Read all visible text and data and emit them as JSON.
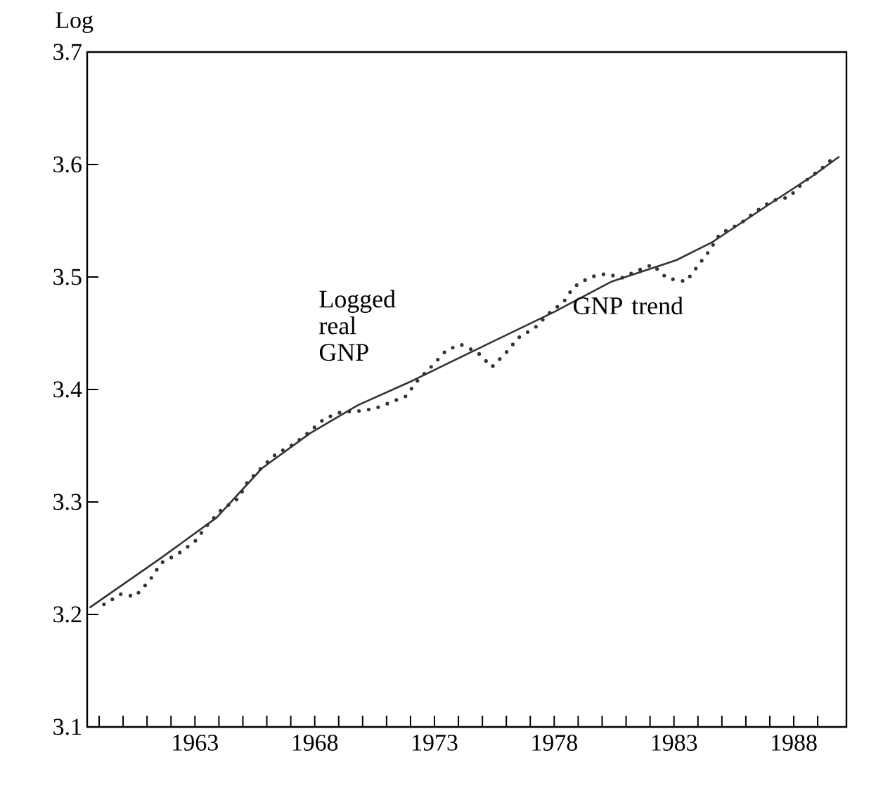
{
  "chart_data": {
    "type": "line",
    "ylabel": "Log",
    "xlim": [
      1958.5,
      1990.2
    ],
    "ylim": [
      3.1,
      3.7
    ],
    "xticks": [
      {
        "value": 1959,
        "label": null
      },
      {
        "value": 1960,
        "label": null
      },
      {
        "value": 1961,
        "label": null
      },
      {
        "value": 1962,
        "label": null
      },
      1963,
      {
        "value": 1964,
        "label": null
      },
      {
        "value": 1965,
        "label": null
      },
      {
        "value": 1966,
        "label": null
      },
      {
        "value": 1967,
        "label": null
      },
      1968,
      {
        "value": 1969,
        "label": null
      },
      {
        "value": 1970,
        "label": null
      },
      {
        "value": 1971,
        "label": null
      },
      {
        "value": 1972,
        "label": null
      },
      1973,
      {
        "value": 1974,
        "label": null
      },
      {
        "value": 1975,
        "label": null
      },
      {
        "value": 1976,
        "label": null
      },
      {
        "value": 1977,
        "label": null
      },
      1978,
      {
        "value": 1979,
        "label": null
      },
      {
        "value": 1980,
        "label": null
      },
      {
        "value": 1981,
        "label": null
      },
      {
        "value": 1982,
        "label": null
      },
      1983,
      {
        "value": 1984,
        "label": null
      },
      {
        "value": 1985,
        "label": null
      },
      {
        "value": 1986,
        "label": null
      },
      {
        "value": 1987,
        "label": null
      },
      1988,
      {
        "value": 1989,
        "label": null
      }
    ],
    "yticks": [
      3.1,
      3.2,
      3.3,
      3.4,
      3.5,
      3.6,
      3.7
    ],
    "grid": false,
    "legend": false,
    "series": [
      {
        "name": "Logged real GNP",
        "color": "#333333",
        "line_style": "dotted",
        "x": [
          1959.2,
          1959.9,
          1960.5,
          1961.1,
          1961.6,
          1962.3,
          1963.0,
          1963.5,
          1964.1,
          1964.8,
          1965.2,
          1965.8,
          1966.4,
          1967.1,
          1967.7,
          1968.4,
          1969.1,
          1969.9,
          1970.5,
          1971.1,
          1971.8,
          1972.3,
          1972.9,
          1973.5,
          1974.1,
          1974.8,
          1975.4,
          1976.0,
          1976.5,
          1977.2,
          1977.8,
          1978.4,
          1978.8,
          1979.5,
          1980.2,
          1980.8,
          1981.4,
          1982.1,
          1982.7,
          1983.5,
          1984.0,
          1984.5,
          1984.9,
          1985.8,
          1986.4,
          1987.1,
          1987.8,
          1988.4,
          1989.2,
          1989.6
        ],
        "values": [
          3.209,
          3.218,
          3.216,
          3.23,
          3.246,
          3.254,
          3.265,
          3.279,
          3.293,
          3.303,
          3.318,
          3.331,
          3.343,
          3.351,
          3.361,
          3.374,
          3.38,
          3.381,
          3.383,
          3.388,
          3.394,
          3.408,
          3.421,
          3.435,
          3.44,
          3.433,
          3.42,
          3.433,
          3.446,
          3.455,
          3.468,
          3.478,
          3.491,
          3.5,
          3.503,
          3.499,
          3.505,
          3.511,
          3.499,
          3.496,
          3.51,
          3.524,
          3.538,
          3.548,
          3.558,
          3.568,
          3.571,
          3.584,
          3.597,
          3.605
        ]
      },
      {
        "name": "GNP trend",
        "color": "#333333",
        "line_style": "solid",
        "x": [
          1958.6,
          1961.5,
          1963.9,
          1965.8,
          1967.8,
          1969.8,
          1972.1,
          1974.6,
          1978.0,
          1980.4,
          1983.1,
          1984.6,
          1987.0,
          1988.8,
          1989.9
        ],
        "values": [
          3.206,
          3.249,
          3.286,
          3.33,
          3.361,
          3.386,
          3.408,
          3.434,
          3.469,
          3.496,
          3.515,
          3.531,
          3.565,
          3.59,
          3.607
        ]
      }
    ]
  }
}
